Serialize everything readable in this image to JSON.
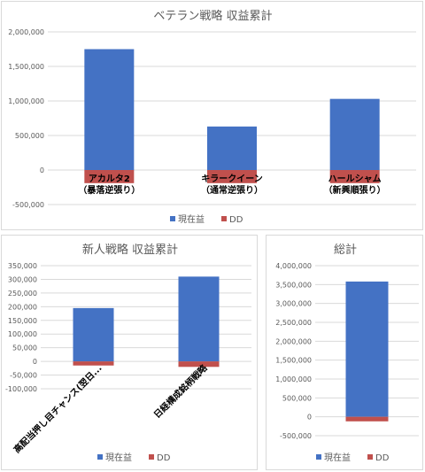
{
  "chart_data": [
    {
      "type": "bar",
      "title": "ベテラン戦略 収益累計",
      "categories": [
        "アカルタ2\n（暴落逆張り）",
        "キラークイーン\n（通常逆張り）",
        "ハールシャム\n（新興順張り）"
      ],
      "series": [
        {
          "name": "現在益",
          "color": "#4472c4",
          "values": [
            1750000,
            630000,
            1030000
          ]
        },
        {
          "name": "DD",
          "color": "#c0504d",
          "values": [
            -190000,
            -190000,
            -190000
          ]
        }
      ],
      "ylim": [
        -500000,
        2000000
      ],
      "yticks": [
        -500000,
        0,
        500000,
        1000000,
        1500000,
        2000000
      ],
      "grid": true,
      "legend": "bottom"
    },
    {
      "type": "bar",
      "title": "新人戦略 収益累計",
      "categories": [
        "高配当押し目チャンス(翌日...",
        "日経構成銘柄戦略"
      ],
      "series": [
        {
          "name": "現在益",
          "color": "#4472c4",
          "values": [
            195000,
            310000
          ]
        },
        {
          "name": "DD",
          "color": "#c0504d",
          "values": [
            -15000,
            -20000
          ]
        }
      ],
      "ylim": [
        -100000,
        350000
      ],
      "yticks": [
        -100000,
        -50000,
        0,
        50000,
        100000,
        150000,
        200000,
        250000,
        300000,
        350000
      ],
      "grid": true,
      "legend": "bottom"
    },
    {
      "type": "bar",
      "title": "総計",
      "categories": [
        ""
      ],
      "series": [
        {
          "name": "現在益",
          "color": "#4472c4",
          "values": [
            3580000
          ]
        },
        {
          "name": "DD",
          "color": "#c0504d",
          "values": [
            -120000
          ]
        }
      ],
      "ylim": [
        -500000,
        4000000
      ],
      "yticks": [
        -500000,
        0,
        500000,
        1000000,
        1500000,
        2000000,
        2500000,
        3000000,
        3500000,
        4000000
      ],
      "grid": true,
      "legend": "bottom"
    }
  ]
}
